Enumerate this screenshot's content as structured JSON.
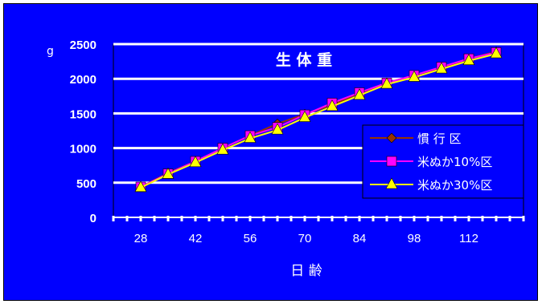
{
  "chart_data": {
    "type": "line",
    "title": "生 体 重",
    "xlabel": "日 齢",
    "ylabel": "g",
    "x": [
      28,
      35,
      42,
      49,
      56,
      63,
      70,
      77,
      84,
      91,
      98,
      105,
      112,
      119
    ],
    "x_tick_labels": [
      "28",
      "42",
      "56",
      "70",
      "84",
      "98",
      "112"
    ],
    "y_tick_labels": [
      "0",
      "500",
      "1000",
      "1500",
      "2000",
      "2500"
    ],
    "xlim": [
      21,
      126
    ],
    "ylim": [
      0,
      2500
    ],
    "grid": true,
    "legend_position": "right",
    "series": [
      {
        "name": "慣 行 区",
        "color": "#993300",
        "marker": "diamond",
        "values": [
          440,
          640,
          810,
          1000,
          1180,
          1350,
          1490,
          1620,
          1790,
          1940,
          2050,
          2160,
          2290,
          2390
        ]
      },
      {
        "name": "米ぬか10%区",
        "color": "#ff00ff",
        "marker": "square",
        "values": [
          440,
          630,
          810,
          1000,
          1180,
          1300,
          1480,
          1650,
          1800,
          1940,
          2050,
          2170,
          2290,
          2380
        ]
      },
      {
        "name": "米ぬか30%区",
        "color": "#ffff00",
        "marker": "triangle",
        "values": [
          430,
          620,
          790,
          970,
          1140,
          1260,
          1440,
          1600,
          1760,
          1920,
          2020,
          2140,
          2260,
          2360
        ]
      }
    ]
  }
}
